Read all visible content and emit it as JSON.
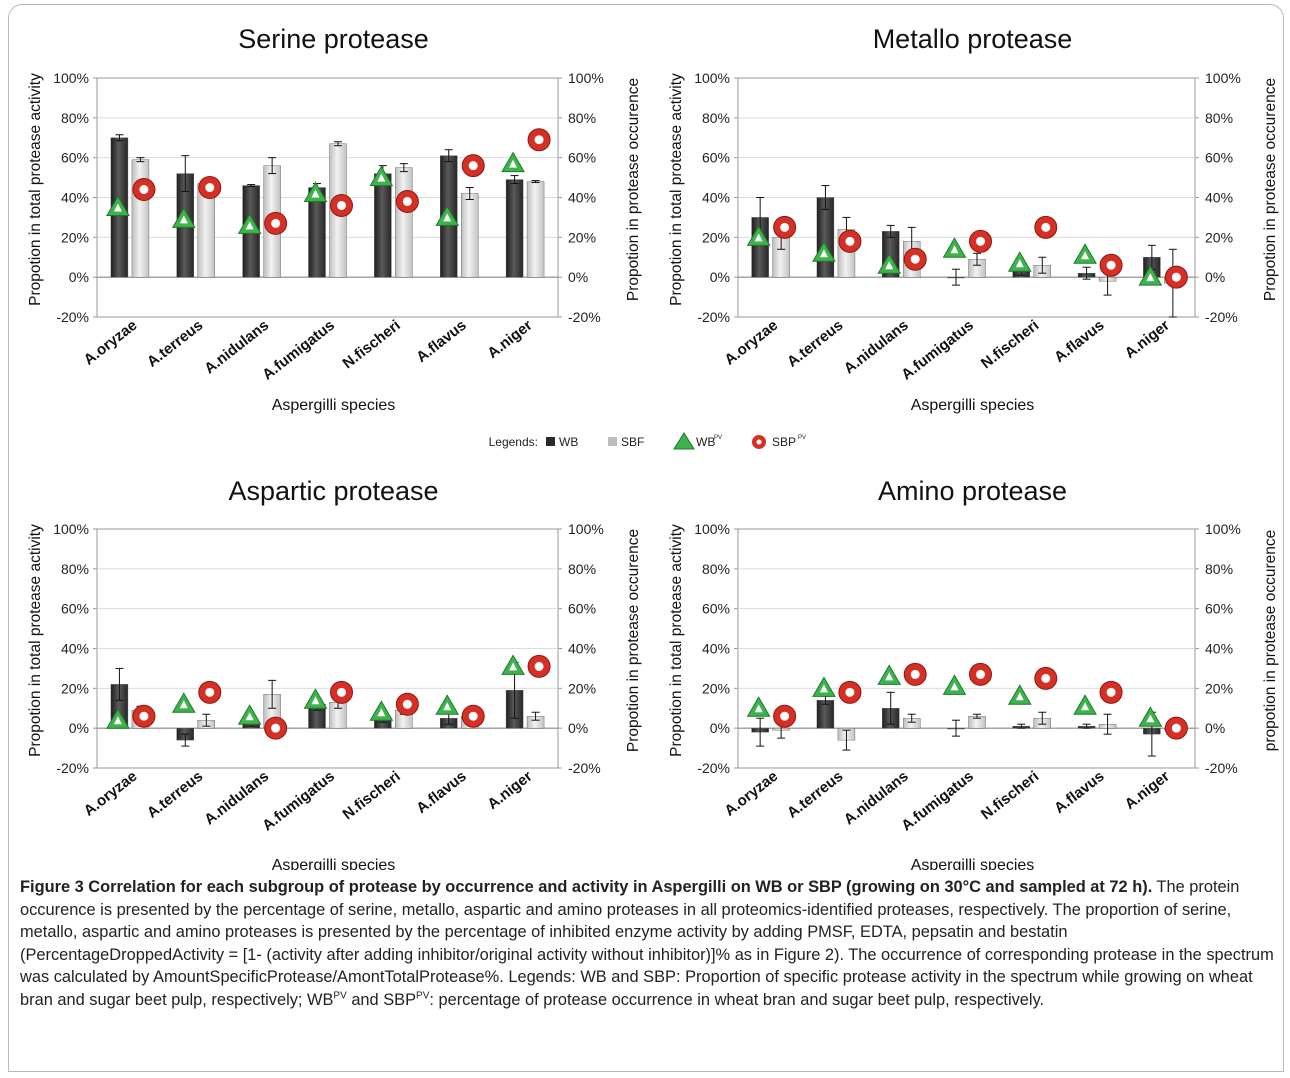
{
  "legend": {
    "prefix": "Legends:",
    "items": [
      {
        "label": "WB",
        "marker": "dark-square-icon"
      },
      {
        "label": "SBF",
        "marker": "light-square-icon"
      },
      {
        "label": "WB",
        "sup": "PV",
        "marker": "green-triangle-icon"
      },
      {
        "label": "SBP",
        "sup": "PV",
        "marker": "red-circle-icon"
      }
    ]
  },
  "colors": {
    "wb_bar": "#3a3a3a",
    "sbp_bar": "#cfcfcf",
    "wb_pv": "#3cb44b",
    "sbp_pv": "#d62f25",
    "axis": "#999999"
  },
  "chart_data": [
    {
      "type": "bar",
      "title": "Serine protease",
      "xlabel": "Aspergilli species",
      "ylabel": "Propotion in total protease activity",
      "ylabel_right": "Propotion in protease occurence",
      "ylim": [
        -20,
        100
      ],
      "yticks": [
        "-20%",
        "0%",
        "20%",
        "40%",
        "60%",
        "80%",
        "100%"
      ],
      "categories": [
        "A.oryzae",
        "A.terreus",
        "A.nidulans",
        "A.fumigatus",
        "N.fischeri",
        "A.flavus",
        "A.niger"
      ],
      "series": [
        {
          "name": "WB",
          "kind": "bar",
          "values": [
            70,
            52,
            46,
            45,
            52,
            61,
            49
          ],
          "errors": [
            1.5,
            9,
            0.5,
            2,
            4,
            3,
            2
          ]
        },
        {
          "name": "SBF",
          "kind": "bar",
          "values": [
            59,
            47,
            56,
            67,
            55,
            42,
            48
          ],
          "errors": [
            1,
            1,
            4,
            1,
            2,
            3,
            0.5
          ]
        },
        {
          "name": "WB PV",
          "kind": "marker",
          "values": [
            35,
            29,
            26,
            42,
            50,
            30,
            57
          ]
        },
        {
          "name": "SBP PV",
          "kind": "marker",
          "values": [
            44,
            45,
            27,
            36,
            38,
            56,
            69
          ]
        }
      ]
    },
    {
      "type": "bar",
      "title": "Metallo protease",
      "xlabel": "Aspergilli species",
      "ylabel": "Propotion in total protease activity",
      "ylabel_right": "Propotion in protease occurence",
      "ylim": [
        -20,
        100
      ],
      "yticks": [
        "-20%",
        "0%",
        "20%",
        "40%",
        "60%",
        "80%",
        "100%"
      ],
      "categories": [
        "A.oryzae",
        "A.terreus",
        "A.nidulans",
        "A.fumigatus",
        "N.fischeri",
        "A.flavus",
        "A.niger"
      ],
      "series": [
        {
          "name": "WB",
          "kind": "bar",
          "values": [
            30,
            40,
            23,
            0,
            4,
            2,
            10
          ],
          "errors": [
            10,
            6,
            3,
            4,
            3,
            3,
            6
          ]
        },
        {
          "name": "SBF",
          "kind": "bar",
          "values": [
            20,
            24,
            18,
            9,
            6,
            -2,
            -3
          ],
          "errors": [
            6,
            6,
            7,
            3,
            4,
            7,
            17
          ]
        },
        {
          "name": "WB PV",
          "kind": "marker",
          "values": [
            20,
            12,
            6,
            14,
            7,
            11,
            0
          ]
        },
        {
          "name": "SBP PV",
          "kind": "marker",
          "values": [
            25,
            18,
            9,
            18,
            25,
            6,
            0
          ]
        }
      ]
    },
    {
      "type": "bar",
      "title": "Aspartic protease",
      "xlabel": "Aspergilli species",
      "ylabel": "Propotion in total protease activity",
      "ylabel_right": "Propotion in protease occurence",
      "ylim": [
        -20,
        100
      ],
      "yticks": [
        "-20%",
        "0%",
        "20%",
        "40%",
        "60%",
        "80%",
        "100%"
      ],
      "categories": [
        "A.oryzae",
        "A.terreus",
        "A.nidulans",
        "A.fumigatus",
        "N.fischeri",
        "A.flavus",
        "A.niger"
      ],
      "series": [
        {
          "name": "WB",
          "kind": "bar",
          "values": [
            22,
            -6,
            3,
            12,
            5,
            5,
            19
          ],
          "errors": [
            8,
            3,
            2,
            3,
            2,
            3,
            14
          ]
        },
        {
          "name": "SBF",
          "kind": "bar",
          "values": [
            9,
            4,
            17,
            13,
            9,
            6,
            6
          ],
          "errors": [
            2,
            3,
            7,
            3,
            2,
            2,
            2
          ]
        },
        {
          "name": "WB PV",
          "kind": "marker",
          "values": [
            4,
            12,
            6,
            14,
            8,
            11,
            31
          ]
        },
        {
          "name": "SBP PV",
          "kind": "marker",
          "values": [
            6,
            18,
            0,
            18,
            12,
            6,
            31
          ]
        }
      ]
    },
    {
      "type": "bar",
      "title": "Amino protease",
      "xlabel": "Aspergilli species",
      "ylabel": "Propotion in total protease activity",
      "ylabel_right": "propotion in protease occurence",
      "ylim": [
        -20,
        100
      ],
      "yticks": [
        "-20%",
        "0%",
        "20%",
        "40%",
        "60%",
        "80%",
        "100%"
      ],
      "categories": [
        "A.oryzae",
        "A.terreus",
        "A.nidulans",
        "A.fumigatus",
        "N.fischeri",
        "A.flavus",
        "A.niger"
      ],
      "series": [
        {
          "name": "WB",
          "kind": "bar",
          "values": [
            -2,
            14,
            10,
            0,
            1,
            1,
            -3
          ],
          "errors": [
            7,
            2,
            8,
            4,
            1,
            1,
            11
          ]
        },
        {
          "name": "SBF",
          "kind": "bar",
          "values": [
            -1,
            -6,
            5,
            6,
            5,
            2,
            -1
          ],
          "errors": [
            4,
            5,
            2,
            1,
            3,
            5,
            3
          ]
        },
        {
          "name": "WB PV",
          "kind": "marker",
          "values": [
            10,
            20,
            26,
            21,
            16,
            11,
            5
          ]
        },
        {
          "name": "SBP PV",
          "kind": "marker",
          "values": [
            6,
            18,
            27,
            27,
            25,
            18,
            0
          ]
        }
      ]
    }
  ],
  "caption": {
    "bold": "Figure 3 Correlation for each subgroup of protease by occurrence and activity in Aspergilli on WB or SBP (growing on 30°C and sampled at 72 h).",
    "text1": " The protein occurence is presented by the percentage of serine, metallo, aspartic and amino proteases in all proteomics-identified proteases, respectively. The proportion of serine, metallo, aspartic and amino proteases is presented by the percentage of inhibited enzyme activity by adding PMSF, EDTA, pepsatin and bestatin (PercentageDroppedActivity = [1- (activity after adding inhibitor/original activity without inhibitor)]% as in Figure 2). The occurrence of corresponding protease in the spectrum was calculated by AmountSpecificProtease/AmontTotalProtease%. Legends: WB and SBP: Proportion of specific protease activity in the spectrum while growing on wheat bran and sugar beet pulp, respectively; WB",
    "sup1": "PV",
    "text2": " and SBP",
    "sup2": "PV",
    "text3": ": percentage of protease occurrence in wheat bran and sugar beet pulp, respectively."
  }
}
